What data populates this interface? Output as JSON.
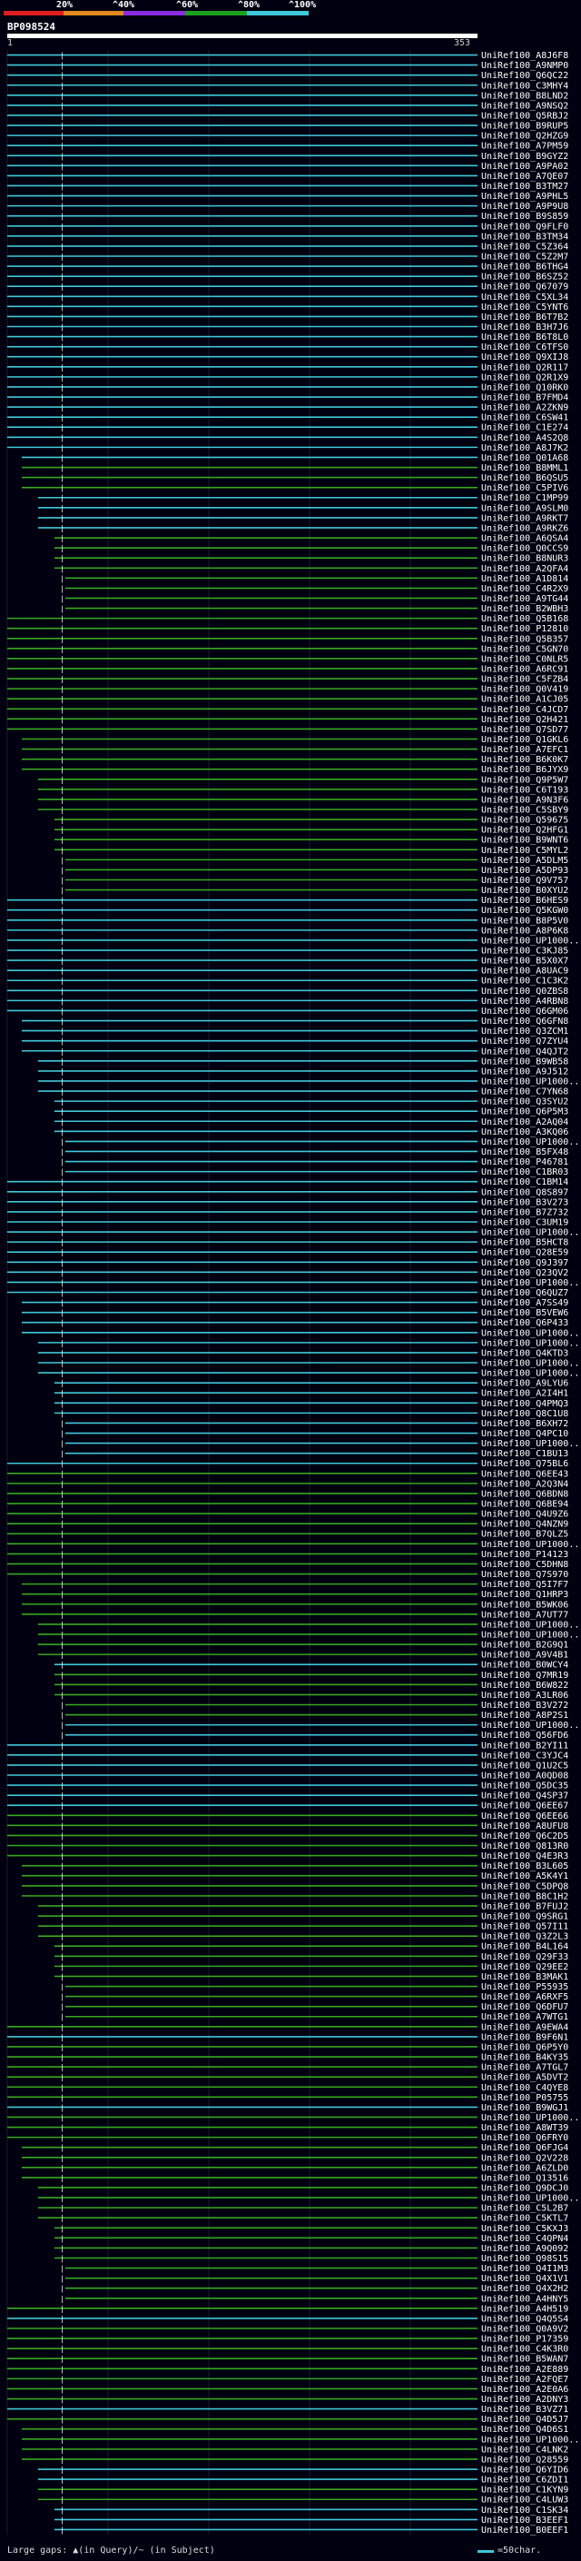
{
  "identity_scale": {
    "labels": [
      "20%",
      "^40%",
      "^60%",
      "^80%",
      "^100%"
    ],
    "colors": [
      "#e01e1e",
      "#e08a1e",
      "#8a2be0",
      "#1ea01e",
      "#3fc8d8"
    ]
  },
  "query": {
    "id": "BP098524",
    "start_label": "1",
    "end_label": "353"
  },
  "colors": {
    "high_identity": "#3fc8d8",
    "mid_identity": "#37a81e",
    "gap": "#ffffff",
    "background": "#000010"
  },
  "hits": [
    {
      "label": "UniRef100_A8J6F8",
      "c": "b"
    },
    {
      "label": "UniRef100_A9NMP0",
      "c": "b"
    },
    {
      "label": "UniRef100_Q6QC22",
      "c": "b"
    },
    {
      "label": "UniRef100_C3MHY4",
      "c": "b"
    },
    {
      "label": "UniRef100_B8LND2",
      "c": "b"
    },
    {
      "label": "UniRef100_A9NSQ2",
      "c": "b"
    },
    {
      "label": "UniRef100_Q5RBJ2",
      "c": "b"
    },
    {
      "label": "UniRef100_B9RUP5",
      "c": "b"
    },
    {
      "label": "UniRef100_Q2HZG9",
      "c": "b"
    },
    {
      "label": "UniRef100_A7PM59",
      "c": "b"
    },
    {
      "label": "UniRef100_B9GYZ2",
      "c": "b"
    },
    {
      "label": "UniRef100_A9PA02",
      "c": "b"
    },
    {
      "label": "UniRef100_A7QE07",
      "c": "b"
    },
    {
      "label": "UniRef100_B3TM27",
      "c": "b"
    },
    {
      "label": "UniRef100_A9PHL5",
      "c": "b"
    },
    {
      "label": "UniRef100_A9P9U8",
      "c": "b"
    },
    {
      "label": "UniRef100_B9S859",
      "c": "b"
    },
    {
      "label": "UniRef100_Q9FLF0",
      "c": "b"
    },
    {
      "label": "UniRef100_B3TM34",
      "c": "b"
    },
    {
      "label": "UniRef100_C5Z364",
      "c": "b"
    },
    {
      "label": "UniRef100_C5Z2M7",
      "c": "b"
    },
    {
      "label": "UniRef100_B6THG4",
      "c": "b"
    },
    {
      "label": "UniRef100_B6SZ52",
      "c": "b"
    },
    {
      "label": "UniRef100_Q67079",
      "c": "b"
    },
    {
      "label": "UniRef100_C5XL34",
      "c": "b"
    },
    {
      "label": "UniRef100_C5YNT6",
      "c": "b"
    },
    {
      "label": "UniRef100_B6T7B2",
      "c": "b"
    },
    {
      "label": "UniRef100_B3H7J6",
      "c": "b"
    },
    {
      "label": "UniRef100_B6T8L0",
      "c": "b"
    },
    {
      "label": "UniRef100_C6TFS0",
      "c": "b"
    },
    {
      "label": "UniRef100_Q9XIJ8",
      "c": "b"
    },
    {
      "label": "UniRef100_Q2R117",
      "c": "b"
    },
    {
      "label": "UniRef100_Q2R1X9",
      "c": "b"
    },
    {
      "label": "UniRef100_Q10RK0",
      "c": "b"
    },
    {
      "label": "UniRef100_B7FMD4",
      "c": "b"
    },
    {
      "label": "UniRef100_A2ZKN9",
      "c": "b"
    },
    {
      "label": "UniRef100_C6SW41",
      "c": "b"
    },
    {
      "label": "UniRef100_C1E274",
      "c": "b"
    },
    {
      "label": "UniRef100_A4S2Q8",
      "c": "b"
    },
    {
      "label": "UniRef100_A8J7K2",
      "c": "b"
    },
    {
      "label": "UniRef100_Q01A68",
      "c": "b"
    },
    {
      "label": "UniRef100_B8MML1",
      "c": "g"
    },
    {
      "label": "UniRef100_B6QSU5",
      "c": "g"
    },
    {
      "label": "UniRef100_C5PIV6",
      "c": "g"
    },
    {
      "label": "UniRef100_C1MP99",
      "c": "b"
    },
    {
      "label": "UniRef100_A9SLM0",
      "c": "b"
    },
    {
      "label": "UniRef100_A9RKT7",
      "c": "b"
    },
    {
      "label": "UniRef100_A9RKZ6",
      "c": "b"
    },
    {
      "label": "UniRef100_A6QSA4",
      "c": "g"
    },
    {
      "label": "UniRef100_Q0CCS9",
      "c": "g"
    },
    {
      "label": "UniRef100_B8NUR3",
      "c": "g"
    },
    {
      "label": "UniRef100_A2QFA4",
      "c": "g"
    },
    {
      "label": "UniRef100_A1D814",
      "c": "g"
    },
    {
      "label": "UniRef100_C4R2X9",
      "c": "g"
    },
    {
      "label": "UniRef100_A9TG44",
      "c": "g"
    },
    {
      "label": "UniRef100_B2WBH3",
      "c": "g"
    },
    {
      "label": "UniRef100_Q5B168",
      "c": "g"
    },
    {
      "label": "UniRef100_P12810",
      "c": "g"
    },
    {
      "label": "UniRef100_Q5B357",
      "c": "g"
    },
    {
      "label": "UniRef100_C5GN70",
      "c": "g"
    },
    {
      "label": "UniRef100_C0NLR5",
      "c": "g"
    },
    {
      "label": "UniRef100_A6RC91",
      "c": "g"
    },
    {
      "label": "UniRef100_C5FZB4",
      "c": "g"
    },
    {
      "label": "UniRef100_Q0V419",
      "c": "g"
    },
    {
      "label": "UniRef100_A1CJ05",
      "c": "g"
    },
    {
      "label": "UniRef100_C4JCD7",
      "c": "g"
    },
    {
      "label": "UniRef100_Q2H421",
      "c": "g"
    },
    {
      "label": "UniRef100_Q7SD77",
      "c": "g"
    },
    {
      "label": "UniRef100_Q1GKL6",
      "c": "g"
    },
    {
      "label": "UniRef100_A7EFC1",
      "c": "g"
    },
    {
      "label": "UniRef100_B6K0K7",
      "c": "g"
    },
    {
      "label": "UniRef100_B6JYX9",
      "c": "g"
    },
    {
      "label": "UniRef100_Q9P5W7",
      "c": "g"
    },
    {
      "label": "UniRef100_C6T193",
      "c": "g"
    },
    {
      "label": "UniRef100_A9N3F6",
      "c": "g"
    },
    {
      "label": "UniRef100_C5SBY9",
      "c": "g"
    },
    {
      "label": "UniRef100_Q59675",
      "c": "g"
    },
    {
      "label": "UniRef100_Q2HFG1",
      "c": "g"
    },
    {
      "label": "UniRef100_B9WNT6",
      "c": "g"
    },
    {
      "label": "UniRef100_C5MYL2",
      "c": "g"
    },
    {
      "label": "UniRef100_A5DLM5",
      "c": "g"
    },
    {
      "label": "UniRef100_A5DP93",
      "c": "g"
    },
    {
      "label": "UniRef100_Q9V757",
      "c": "g"
    },
    {
      "label": "UniRef100_B0XYU2",
      "c": "g"
    },
    {
      "label": "UniRef100_B6HES9",
      "c": "b"
    },
    {
      "label": "UniRef100_Q5KGW0",
      "c": "b"
    },
    {
      "label": "UniRef100_B8P5V0",
      "c": "b"
    },
    {
      "label": "UniRef100_A8P6K8",
      "c": "b"
    },
    {
      "label": "UniRef100_UP1000...",
      "c": "b"
    },
    {
      "label": "UniRef100_C3KJ85",
      "c": "b"
    },
    {
      "label": "UniRef100_B5X0X7",
      "c": "b"
    },
    {
      "label": "UniRef100_A8UAC9",
      "c": "b"
    },
    {
      "label": "UniRef100_C1C3K2",
      "c": "b"
    },
    {
      "label": "UniRef100_Q0ZBS8",
      "c": "b"
    },
    {
      "label": "UniRef100_A4RBN8",
      "c": "b"
    },
    {
      "label": "UniRef100_Q6GM06",
      "c": "b"
    },
    {
      "label": "UniRef100_Q6GFN8",
      "c": "b"
    },
    {
      "label": "UniRef100_Q3ZCM1",
      "c": "b"
    },
    {
      "label": "UniRef100_Q7ZYU4",
      "c": "b"
    },
    {
      "label": "UniRef100_Q4QJT2",
      "c": "b"
    },
    {
      "label": "UniRef100_B9WB58",
      "c": "b"
    },
    {
      "label": "UniRef100_A9J512",
      "c": "b"
    },
    {
      "label": "UniRef100_UP1000...",
      "c": "b"
    },
    {
      "label": "UniRef100_C7YN68",
      "c": "b"
    },
    {
      "label": "UniRef100_Q3SYU2",
      "c": "b"
    },
    {
      "label": "UniRef100_Q6P5M3",
      "c": "b"
    },
    {
      "label": "UniRef100_A2AQ04",
      "c": "b"
    },
    {
      "label": "UniRef100_A3KQ06",
      "c": "b"
    },
    {
      "label": "UniRef100_UP1000...",
      "c": "b"
    },
    {
      "label": "UniRef100_B5FX48",
      "c": "b"
    },
    {
      "label": "UniRef100_P46781",
      "c": "b"
    },
    {
      "label": "UniRef100_C1BR03",
      "c": "b"
    },
    {
      "label": "UniRef100_C1BM14",
      "c": "b"
    },
    {
      "label": "UniRef100_Q8S897",
      "c": "b"
    },
    {
      "label": "UniRef100_B3V273",
      "c": "b"
    },
    {
      "label": "UniRef100_B7Z732",
      "c": "b"
    },
    {
      "label": "UniRef100_C3UM19",
      "c": "b"
    },
    {
      "label": "UniRef100_UP1000...",
      "c": "b"
    },
    {
      "label": "UniRef100_B5HCT8",
      "c": "b"
    },
    {
      "label": "UniRef100_Q28E59",
      "c": "b"
    },
    {
      "label": "UniRef100_Q9J397",
      "c": "b"
    },
    {
      "label": "UniRef100_Q23QV2",
      "c": "b"
    },
    {
      "label": "UniRef100_UP1000...",
      "c": "b"
    },
    {
      "label": "UniRef100_Q6QUZ7",
      "c": "b"
    },
    {
      "label": "UniRef100_A7SS49",
      "c": "b"
    },
    {
      "label": "UniRef100_B5VEW6",
      "c": "b"
    },
    {
      "label": "UniRef100_Q6P433",
      "c": "b"
    },
    {
      "label": "UniRef100_UP1000...",
      "c": "b"
    },
    {
      "label": "UniRef100_UP1000...",
      "c": "b"
    },
    {
      "label": "UniRef100_Q4KTD3",
      "c": "b"
    },
    {
      "label": "UniRef100_UP1000...",
      "c": "b"
    },
    {
      "label": "UniRef100_UP1000...",
      "c": "b"
    },
    {
      "label": "UniRef100_A9LYU6",
      "c": "b"
    },
    {
      "label": "UniRef100_A2I4H1",
      "c": "b"
    },
    {
      "label": "UniRef100_Q4PMQ3",
      "c": "b"
    },
    {
      "label": "UniRef100_Q8C1U8",
      "c": "b"
    },
    {
      "label": "UniRef100_B6XH72",
      "c": "b"
    },
    {
      "label": "UniRef100_Q4PC10",
      "c": "b"
    },
    {
      "label": "UniRef100_UP1000...",
      "c": "b"
    },
    {
      "label": "UniRef100_C1BU13",
      "c": "b"
    },
    {
      "label": "UniRef100_Q75BL6",
      "c": "b"
    },
    {
      "label": "UniRef100_Q6EE43",
      "c": "g"
    },
    {
      "label": "UniRef100_A2Q3N4",
      "c": "g"
    },
    {
      "label": "UniRef100_Q6BDN8",
      "c": "g"
    },
    {
      "label": "UniRef100_Q6BE94",
      "c": "g"
    },
    {
      "label": "UniRef100_Q4U9Z6",
      "c": "g"
    },
    {
      "label": "UniRef100_Q4NZN9",
      "c": "g"
    },
    {
      "label": "UniRef100_B7QLZ5",
      "c": "g"
    },
    {
      "label": "UniRef100_UP1000...",
      "c": "g"
    },
    {
      "label": "UniRef100_P14123",
      "c": "g"
    },
    {
      "label": "UniRef100_C5DHN8",
      "c": "g"
    },
    {
      "label": "UniRef100_Q7S970",
      "c": "g"
    },
    {
      "label": "UniRef100_Q5I7F7",
      "c": "g"
    },
    {
      "label": "UniRef100_Q1HRP3",
      "c": "g"
    },
    {
      "label": "UniRef100_B5WK06",
      "c": "g"
    },
    {
      "label": "UniRef100_A7UT77",
      "c": "g"
    },
    {
      "label": "UniRef100_UP1000...",
      "c": "g"
    },
    {
      "label": "UniRef100_UP1000...",
      "c": "g"
    },
    {
      "label": "UniRef100_B2G9Q1",
      "c": "g"
    },
    {
      "label": "UniRef100_A9V4B1",
      "c": "g"
    },
    {
      "label": "UniRef100_B0WCY4",
      "c": "b"
    },
    {
      "label": "UniRef100_Q7MR19",
      "c": "g"
    },
    {
      "label": "UniRef100_B6W822",
      "c": "g"
    },
    {
      "label": "UniRef100_A3LR06",
      "c": "g"
    },
    {
      "label": "UniRef100_B3V272",
      "c": "g"
    },
    {
      "label": "UniRef100_A8P2S1",
      "c": "g"
    },
    {
      "label": "UniRef100_UP1000...",
      "c": "b"
    },
    {
      "label": "UniRef100_Q56FD6",
      "c": "b"
    },
    {
      "label": "UniRef100_B2YI11",
      "c": "b"
    },
    {
      "label": "UniRef100_C3YJC4",
      "c": "b"
    },
    {
      "label": "UniRef100_Q1U2C5",
      "c": "b"
    },
    {
      "label": "UniRef100_A0QD08",
      "c": "b"
    },
    {
      "label": "UniRef100_Q5DC35",
      "c": "b"
    },
    {
      "label": "UniRef100_Q4SP37",
      "c": "b"
    },
    {
      "label": "UniRef100_Q6EE67",
      "c": "b"
    },
    {
      "label": "UniRef100_Q6EE66",
      "c": "g"
    },
    {
      "label": "UniRef100_A8UFU8",
      "c": "g"
    },
    {
      "label": "UniRef100_Q6C2D5",
      "c": "g"
    },
    {
      "label": "UniRef100_Q813R0",
      "c": "g"
    },
    {
      "label": "UniRef100_Q4E3R3",
      "c": "g"
    },
    {
      "label": "UniRef100_B3L605",
      "c": "g"
    },
    {
      "label": "UniRef100_A5K4Y1",
      "c": "g"
    },
    {
      "label": "UniRef100_C5DPQ8",
      "c": "g"
    },
    {
      "label": "UniRef100_B8C1H2",
      "c": "g"
    },
    {
      "label": "UniRef100_B7FUJ2",
      "c": "g"
    },
    {
      "label": "UniRef100_Q9SRG1",
      "c": "g"
    },
    {
      "label": "UniRef100_Q57I11",
      "c": "g"
    },
    {
      "label": "UniRef100_Q3Z2L3",
      "c": "g"
    },
    {
      "label": "UniRef100_B4L164",
      "c": "g"
    },
    {
      "label": "UniRef100_Q29F33",
      "c": "g"
    },
    {
      "label": "UniRef100_Q29EE2",
      "c": "g"
    },
    {
      "label": "UniRef100_B3MAK1",
      "c": "g"
    },
    {
      "label": "UniRef100_P55935",
      "c": "g"
    },
    {
      "label": "UniRef100_A6RXF5",
      "c": "g"
    },
    {
      "label": "UniRef100_Q6DFU7",
      "c": "g"
    },
    {
      "label": "UniRef100_A7WTG1",
      "c": "g"
    },
    {
      "label": "UniRef100_A9EWA4",
      "c": "g"
    },
    {
      "label": "UniRef100_B9F6N1",
      "c": "b"
    },
    {
      "label": "UniRef100_Q6P5Y0",
      "c": "g"
    },
    {
      "label": "UniRef100_B4KY35",
      "c": "g"
    },
    {
      "label": "UniRef100_A7TGL7",
      "c": "g"
    },
    {
      "label": "UniRef100_A5DVT2",
      "c": "g"
    },
    {
      "label": "UniRef100_C4QYE8",
      "c": "g"
    },
    {
      "label": "UniRef100_P05755",
      "c": "g"
    },
    {
      "label": "UniRef100_B9WGJ1",
      "c": "b"
    },
    {
      "label": "UniRef100_UP1000...",
      "c": "g"
    },
    {
      "label": "UniRef100_A8WT39",
      "c": "g"
    },
    {
      "label": "UniRef100_Q6FRY0",
      "c": "g"
    },
    {
      "label": "UniRef100_Q6FJG4",
      "c": "g"
    },
    {
      "label": "UniRef100_Q2V228",
      "c": "g"
    },
    {
      "label": "UniRef100_A6ZLD0",
      "c": "g"
    },
    {
      "label": "UniRef100_Q13516",
      "c": "g"
    },
    {
      "label": "UniRef100_Q9DCJ0",
      "c": "g"
    },
    {
      "label": "UniRef100_UP1000...",
      "c": "g"
    },
    {
      "label": "UniRef100_C5L2B7",
      "c": "g"
    },
    {
      "label": "UniRef100_C5KTL7",
      "c": "g"
    },
    {
      "label": "UniRef100_C5KXJ3",
      "c": "g"
    },
    {
      "label": "UniRef100_C4QPN4",
      "c": "g"
    },
    {
      "label": "UniRef100_A9Q092",
      "c": "g"
    },
    {
      "label": "UniRef100_Q98S15",
      "c": "g"
    },
    {
      "label": "UniRef100_Q4I1M3",
      "c": "g"
    },
    {
      "label": "UniRef100_Q4X1V1",
      "c": "g"
    },
    {
      "label": "UniRef100_Q4X2H2",
      "c": "g"
    },
    {
      "label": "UniRef100_A4HNY5",
      "c": "g"
    },
    {
      "label": "UniRef100_A4H519",
      "c": "g"
    },
    {
      "label": "UniRef100_Q4Q5S4",
      "c": "b"
    },
    {
      "label": "UniRef100_Q0A9V2",
      "c": "g"
    },
    {
      "label": "UniRef100_P17359",
      "c": "g"
    },
    {
      "label": "UniRef100_C4K3R0",
      "c": "g"
    },
    {
      "label": "UniRef100_B5WAN7",
      "c": "g"
    },
    {
      "label": "UniRef100_A2E889",
      "c": "g"
    },
    {
      "label": "UniRef100_A2FQE7",
      "c": "g"
    },
    {
      "label": "UniRef100_A2E0A6",
      "c": "g"
    },
    {
      "label": "UniRef100_A2DNY3",
      "c": "g"
    },
    {
      "label": "UniRef100_B3VZ71",
      "c": "b"
    },
    {
      "label": "UniRef100_Q4D5J7",
      "c": "g"
    },
    {
      "label": "UniRef100_Q4D6S1",
      "c": "g"
    },
    {
      "label": "UniRef100_UP1000...",
      "c": "g"
    },
    {
      "label": "UniRef100_C4LNK2",
      "c": "g"
    },
    {
      "label": "UniRef100_Q28559",
      "c": "g"
    },
    {
      "label": "UniRef100_Q6YID6",
      "c": "b"
    },
    {
      "label": "UniRef100_C6ZDI1",
      "c": "b"
    },
    {
      "label": "UniRef100_C1KYN9",
      "c": "g"
    },
    {
      "label": "UniRef100_C4LUW3",
      "c": "g"
    },
    {
      "label": "UniRef100_C1SK34",
      "c": "b"
    },
    {
      "label": "UniRef100_B3EEF1",
      "c": "b"
    },
    {
      "label": "UniRef100_B0EEF1",
      "c": "b"
    }
  ],
  "footer": {
    "gap_legend": "Large gaps: ▲(in Query)/~ (in Subject)",
    "scale_legend": "=50char."
  }
}
